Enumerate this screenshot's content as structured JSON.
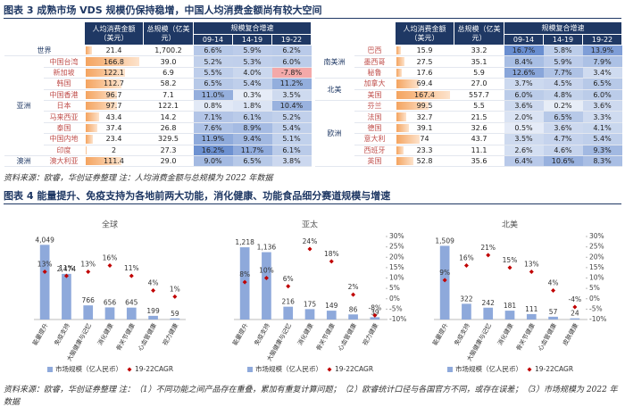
{
  "figure3": {
    "title": "图表 3 成熟市场 VDS 规模仍保持稳增，中国人均消费金额尚有较大空间",
    "table": {
      "header": {
        "per_capita": "人均消费金额（美元）",
        "total": "总规模（亿美元）",
        "growth": "规模复合增速",
        "periods": [
          "09-14",
          "14-19",
          "19-22"
        ]
      },
      "left": [
        {
          "region": "世界",
          "cells": [
            "21.4",
            "1,700.2",
            "6.6%",
            "5.9%",
            "6.2%"
          ]
        },
        {
          "region": "亚洲",
          "rows": [
            [
              "中国台湾",
              "166.8",
              "39.0",
              "5.2%",
              "5.3%",
              "6.0%"
            ],
            [
              "新加坡",
              "122.1",
              "6.9",
              "5.5%",
              "4.0%",
              "-7.8%"
            ],
            [
              "韩国",
              "112.7",
              "58.2",
              "6.5%",
              "5.4%",
              "11.2%"
            ],
            [
              "中国香港",
              "96.7",
              "7.1",
              "11.0%",
              "0.3%",
              "3.5%"
            ],
            [
              "日本",
              "97.7",
              "122.1",
              "0.8%",
              "1.8%",
              "10.4%"
            ],
            [
              "马来西亚",
              "43.4",
              "14.2",
              "7.1%",
              "6.1%",
              "5.2%"
            ],
            [
              "泰国",
              "37.4",
              "26.8",
              "7.6%",
              "8.9%",
              "5.4%"
            ],
            [
              "中国内地",
              "23.4",
              "329.5",
              "11.9%",
              "9.4%",
              "5.1%"
            ],
            [
              "印度",
              "2",
              "27.3",
              "16.2%",
              "11.7%",
              "6.1%"
            ]
          ]
        },
        {
          "region": "澳洲",
          "rows": [
            [
              "澳大利亚",
              "111.4",
              "29.0",
              "9.0%",
              "6.5%",
              "3.8%"
            ]
          ]
        }
      ],
      "right": [
        {
          "region": "南美洲",
          "rows": [
            [
              "巴西",
              "15.9",
              "33.2",
              "16.7%",
              "5.8%",
              "13.9%"
            ],
            [
              "墨西哥",
              "27.5",
              "35.1",
              "8.4%",
              "5.9%",
              "7.9%"
            ],
            [
              "秘鲁",
              "17.6",
              "5.9",
              "12.6%",
              "7.7%",
              "3.4%"
            ]
          ]
        },
        {
          "region": "北美",
          "rows": [
            [
              "加拿大",
              "69.4",
              "27.0",
              "3.7%",
              "4.5%",
              "6.5%"
            ],
            [
              "美国",
              "167.4",
              "557.7",
              "6.0%",
              "4.8%",
              "6.0%"
            ]
          ]
        },
        {
          "region": "欧洲",
          "rows": [
            [
              "芬兰",
              "99.5",
              "5.5",
              "3.6%",
              "0.2%",
              "3.6%"
            ],
            [
              "法国",
              "32.7",
              "21.5",
              "2.0%",
              "6.5%",
              "3.3%"
            ],
            [
              "德国",
              "39.1",
              "32.6",
              "0.5%",
              "3.6%",
              "4.1%"
            ],
            [
              "意大利",
              "74",
              "43.7",
              "3.5%",
              "4.7%",
              "5.4%"
            ],
            [
              "西班牙",
              "23.3",
              "11.1",
              "2.6%",
              "4.6%",
              "9.3%"
            ],
            [
              "英国",
              "52.8",
              "35.6",
              "6.4%",
              "10.6%",
              "8.3%"
            ]
          ]
        }
      ]
    },
    "source": "资料来源：欧睿，华创证券整理  注：人均消费金额与总规模为 2022 年数据"
  },
  "figure4": {
    "title": "图表 4 能量提升、免疫支持为各地前两大功能，消化健康、功能食品细分赛道规模与增速",
    "source": "资料来源：欧睿，华创证券整理  注：（1）不同功能之间产品存在重叠，累加有重复计算问题；（2）欧睿统计口径与各国官方不同，或存在误差；（3）市场规模为 2022 年数据"
  },
  "chart_data": [
    {
      "type": "combo",
      "title": "全球",
      "categories": [
        "能量提升",
        "免疫支持",
        "大脑健康与记忆",
        "消化健康",
        "骨关节健康",
        "心血管健康",
        "视力健康"
      ],
      "ylim": [
        0,
        4500
      ],
      "y2lim": [
        -10,
        30
      ],
      "series": [
        {
          "name": "市场规模（亿人民币）",
          "color": "#8ea9db",
          "values": [
            4049,
            2474,
            766,
            656,
            645,
            199,
            59
          ],
          "value_labels": [
            "4,049",
            "2,474",
            "766",
            "656",
            "645",
            "199",
            "59"
          ]
        },
        {
          "name": "19-22CAGR",
          "color": "#c00000",
          "axis": "y2",
          "values": [
            13,
            11,
            13,
            16,
            11,
            4,
            1
          ],
          "value_labels": [
            "13%",
            "11%",
            "13%",
            "16%",
            "11%",
            "4%",
            "1%"
          ]
        }
      ]
    },
    {
      "type": "combo",
      "title": "亚太",
      "categories": [
        "能量提升",
        "免疫支持",
        "大脑健康与记忆",
        "消化健康",
        "骨关节健康",
        "心血管健康",
        "视力健康"
      ],
      "ylim": [
        0,
        1400
      ],
      "y2lim": [
        -10,
        30
      ],
      "y2ticks": [
        {
          "value": 30,
          "label": "30%"
        },
        {
          "value": 25,
          "label": "25%"
        },
        {
          "value": 20,
          "label": "20%"
        },
        {
          "value": 15,
          "label": "15%"
        },
        {
          "value": 10,
          "label": "10%"
        },
        {
          "value": 5,
          "label": "5%"
        },
        {
          "value": 0,
          "label": "0%"
        },
        {
          "value": -5,
          "label": "-5%"
        },
        {
          "value": -10,
          "label": "-10%"
        }
      ],
      "series": [
        {
          "name": "市场规模（亿人民币）",
          "color": "#8ea9db",
          "values": [
            1218,
            1136,
            216,
            175,
            149,
            86,
            39
          ],
          "value_labels": [
            "1,218",
            "1,136",
            "216",
            "175",
            "149",
            "86",
            "39"
          ]
        },
        {
          "name": "19-22CAGR",
          "color": "#c00000",
          "axis": "y2",
          "values": [
            8,
            10,
            6,
            24,
            18,
            2,
            -8
          ],
          "value_labels": [
            "8%",
            "10%",
            "6%",
            "24%",
            "18%",
            "2%",
            "-8%"
          ]
        }
      ]
    },
    {
      "type": "combo",
      "title": "北美",
      "categories": [
        "能量提升",
        "免疫支持",
        "大脑健康与记忆",
        "消化健康",
        "骨关节健康",
        "心血管健康",
        "皮肤健康"
      ],
      "ylim": [
        0,
        1700
      ],
      "y2lim": [
        -10,
        30
      ],
      "y2ticks": [
        {
          "value": 30,
          "label": "30%"
        },
        {
          "value": 25,
          "label": "25%"
        },
        {
          "value": 20,
          "label": "20%"
        },
        {
          "value": 15,
          "label": "15%"
        },
        {
          "value": 10,
          "label": "10%"
        },
        {
          "value": 5,
          "label": "5%"
        },
        {
          "value": 0,
          "label": "0%"
        },
        {
          "value": -5,
          "label": "-5%"
        },
        {
          "value": -10,
          "label": "-10%"
        }
      ],
      "series": [
        {
          "name": "市场规模（亿人民币）",
          "color": "#8ea9db",
          "values": [
            1509,
            322,
            242,
            181,
            111,
            57,
            24
          ],
          "value_labels": [
            "1,509",
            "322",
            "242",
            "181",
            "111",
            "57",
            "24"
          ]
        },
        {
          "name": "19-22CAGR",
          "color": "#c00000",
          "axis": "y2",
          "values": [
            9,
            16,
            21,
            15,
            13,
            4,
            -4
          ],
          "value_labels": [
            "9%",
            "16%",
            "21%",
            "15%",
            "13%",
            "4%",
            "-4%"
          ]
        }
      ]
    }
  ]
}
